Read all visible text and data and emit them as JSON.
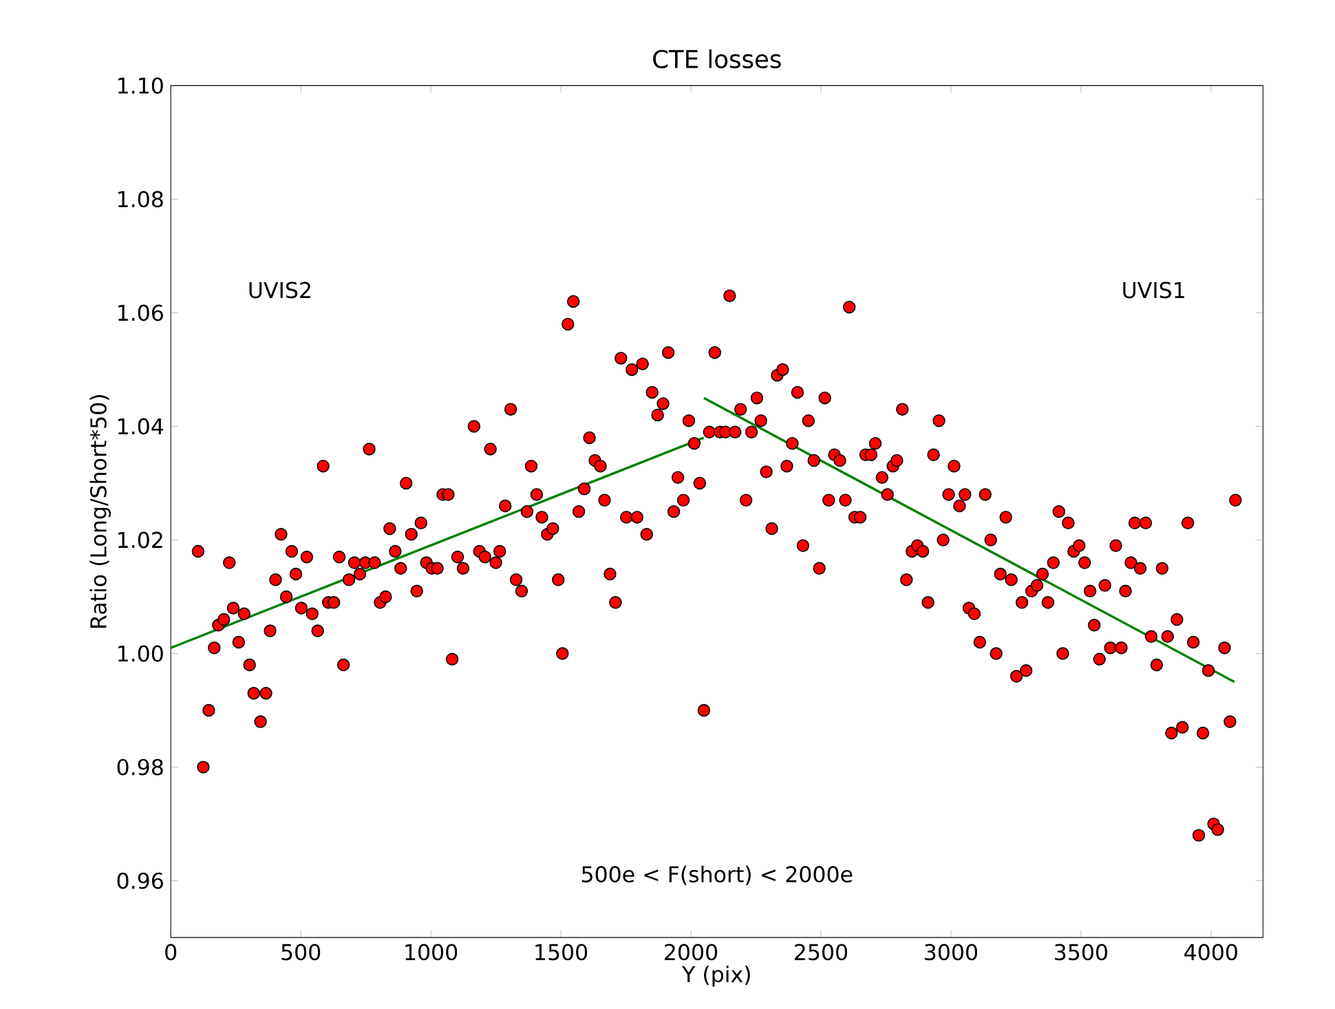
{
  "chart_data": {
    "type": "scatter",
    "title": "CTE losses",
    "xlabel": "Y (pix)",
    "ylabel": "Ratio (Long/Short*50)",
    "xlim": [
      0,
      4200
    ],
    "ylim": [
      0.95,
      1.1
    ],
    "xticks": [
      0,
      500,
      1000,
      1500,
      2000,
      2500,
      3000,
      3500,
      4000
    ],
    "yticks": [
      0.96,
      0.98,
      {
        "value": 1.0,
        "label": "1.00"
      },
      1.02,
      1.04,
      1.06,
      1.08,
      {
        "value": 1.1,
        "label": "1.10"
      }
    ],
    "annotations": [
      "UVIS2",
      "UVIS1",
      "500e < F(short) < 2000e"
    ],
    "series": [
      {
        "marker": "circle",
        "color": "#ff0000",
        "x": [
          105,
          125,
          146,
          167,
          183,
          204,
          225,
          240,
          261,
          282,
          303,
          319,
          345,
          366,
          382,
          403,
          424,
          444,
          465,
          481,
          502,
          523,
          544,
          565,
          586,
          606,
          627,
          648,
          664,
          685,
          706,
          727,
          748,
          763,
          784,
          805,
          826,
          842,
          863,
          884,
          905,
          925,
          946,
          962,
          983,
          1004,
          1025,
          1046,
          1067,
          1082,
          1103,
          1124,
          1166,
          1187,
          1208,
          1229,
          1250,
          1265,
          1286,
          1307,
          1328,
          1349,
          1370,
          1386,
          1407,
          1427,
          1448,
          1469,
          1490,
          1506,
          1527,
          1548,
          1569,
          1590,
          1610,
          1631,
          1652,
          1668,
          1689,
          1710,
          1731,
          1752,
          1773,
          1793,
          1814,
          1830,
          1851,
          1872,
          1893,
          1913,
          1934,
          1950,
          1971,
          1992,
          2013,
          2034,
          2050,
          2071,
          2092,
          2112,
          2133,
          2149,
          2170,
          2191,
          2212,
          2233,
          2254,
          2269,
          2290,
          2311,
          2332,
          2353,
          2369,
          2390,
          2410,
          2431,
          2452,
          2473,
          2494,
          2515,
          2530,
          2552,
          2573,
          2594,
          2609,
          2630,
          2651,
          2672,
          2693,
          2709,
          2735,
          2756,
          2777,
          2792,
          2813,
          2829,
          2850,
          2871,
          2892,
          2912,
          2933,
          2954,
          2970,
          2991,
          3012,
          3033,
          3054,
          3069,
          3090,
          3111,
          3132,
          3153,
          3174,
          3190,
          3211,
          3232,
          3252,
          3273,
          3289,
          3310,
          3331,
          3352,
          3373,
          3394,
          3415,
          3430,
          3451,
          3472,
          3493,
          3514,
          3535,
          3551,
          3571,
          3592,
          3613,
          3634,
          3655,
          3671,
          3692,
          3707,
          3728,
          3749,
          3770,
          3791,
          3812,
          3833,
          3848,
          3869,
          3890,
          3911,
          3932,
          3953,
          3969,
          3990,
          4010,
          4026,
          4052,
          4073,
          4094
        ],
        "values": [
          1.018,
          0.98,
          0.99,
          1.001,
          1.005,
          1.006,
          1.016,
          1.008,
          1.002,
          1.007,
          0.998,
          0.993,
          0.988,
          0.993,
          1.004,
          1.013,
          1.021,
          1.01,
          1.018,
          1.014,
          1.008,
          1.017,
          1.007,
          1.004,
          1.033,
          1.009,
          1.009,
          1.017,
          0.998,
          1.013,
          1.016,
          1.014,
          1.016,
          1.036,
          1.016,
          1.009,
          1.01,
          1.022,
          1.018,
          1.015,
          1.03,
          1.021,
          1.011,
          1.023,
          1.016,
          1.015,
          1.015,
          1.028,
          1.028,
          0.999,
          1.017,
          1.015,
          1.04,
          1.018,
          1.017,
          1.036,
          1.016,
          1.018,
          1.026,
          1.043,
          1.013,
          1.011,
          1.025,
          1.033,
          1.028,
          1.024,
          1.021,
          1.022,
          1.013,
          1.0,
          1.058,
          1.062,
          1.025,
          1.029,
          1.038,
          1.034,
          1.033,
          1.027,
          1.014,
          1.009,
          1.052,
          1.024,
          1.05,
          1.024,
          1.051,
          1.021,
          1.046,
          1.042,
          1.044,
          1.053,
          1.025,
          1.031,
          1.027,
          1.041,
          1.037,
          1.03,
          0.99,
          1.039,
          1.053,
          1.039,
          1.039,
          1.063,
          1.039,
          1.043,
          1.027,
          1.039,
          1.045,
          1.041,
          1.032,
          1.022,
          1.049,
          1.05,
          1.033,
          1.037,
          1.046,
          1.019,
          1.041,
          1.034,
          1.015,
          1.045,
          1.027,
          1.035,
          1.034,
          1.027,
          1.061,
          1.024,
          1.024,
          1.035,
          1.035,
          1.037,
          1.031,
          1.028,
          1.033,
          1.034,
          1.043,
          1.013,
          1.018,
          1.019,
          1.018,
          1.009,
          1.035,
          1.041,
          1.02,
          1.028,
          1.033,
          1.026,
          1.028,
          1.008,
          1.007,
          1.002,
          1.028,
          1.02,
          1.0,
          1.014,
          1.024,
          1.013,
          0.996,
          1.009,
          0.997,
          1.011,
          1.012,
          1.014,
          1.009,
          1.016,
          1.025,
          1.0,
          1.023,
          1.018,
          1.019,
          1.016,
          1.011,
          1.005,
          0.999,
          1.012,
          1.001,
          1.019,
          1.001,
          1.011,
          1.016,
          1.023,
          1.015,
          1.023,
          1.003,
          0.998,
          1.015,
          1.003,
          0.986,
          1.006,
          0.987,
          1.023,
          1.002,
          0.968,
          0.986,
          0.997,
          0.97,
          0.969,
          1.001,
          0.988,
          1.027
        ]
      },
      {
        "type": "line",
        "color": "#008000",
        "x": [
          0,
          2050
        ],
        "values": [
          1.001,
          1.038
        ]
      },
      {
        "type": "line",
        "color": "#008000",
        "x": [
          2050,
          4090
        ],
        "values": [
          1.045,
          0.995
        ]
      }
    ]
  }
}
